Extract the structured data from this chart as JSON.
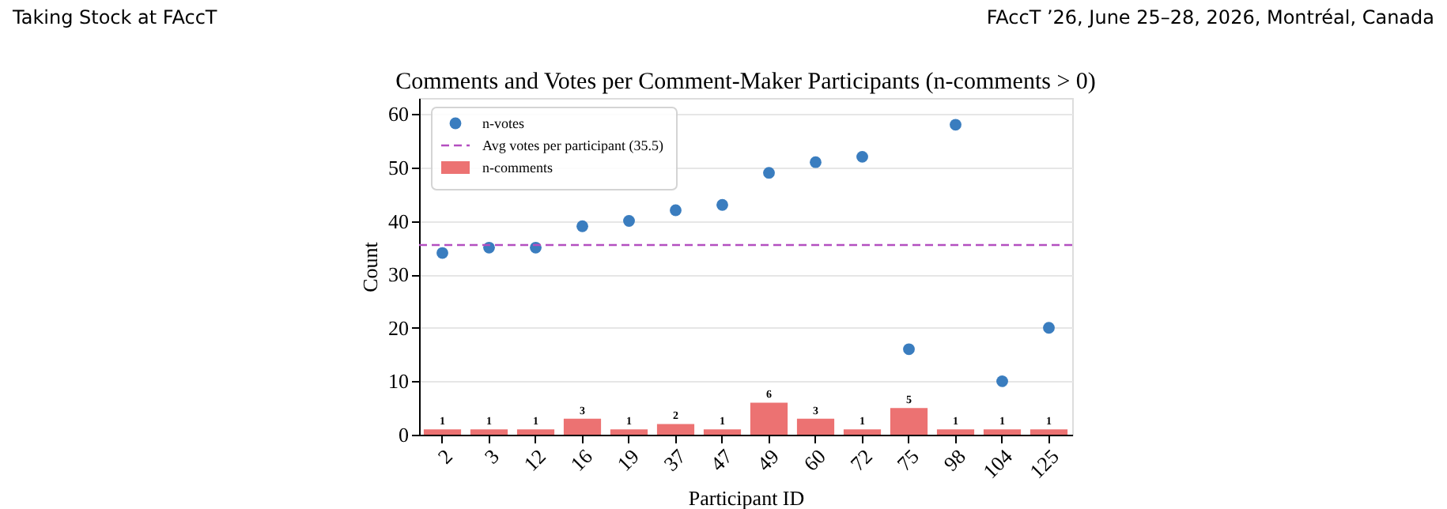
{
  "chart_data": {
    "type": "bar",
    "title": "Comments and Votes per Comment-Maker Participants (n-comments > 0)",
    "xlabel": "Participant ID",
    "ylabel": "Count",
    "categories": [
      "2",
      "3",
      "12",
      "16",
      "19",
      "37",
      "47",
      "49",
      "60",
      "72",
      "75",
      "98",
      "104",
      "125"
    ],
    "series": [
      {
        "name": "n-comments",
        "color": "#ec7272",
        "values": [
          1,
          1,
          1,
          3,
          1,
          2,
          1,
          6,
          3,
          1,
          5,
          1,
          1,
          1
        ],
        "value_labels": [
          "1",
          "1",
          "1",
          "3",
          "1",
          "2",
          "1",
          "6",
          "3",
          "1",
          "5",
          "1",
          "1",
          "1"
        ]
      },
      {
        "name": "n-votes",
        "type": "scatter",
        "color": "#3a7dbf",
        "values": [
          34,
          35,
          35,
          39,
          40,
          42,
          43,
          49,
          51,
          52,
          16,
          58,
          10,
          20
        ]
      }
    ],
    "ref_lines": [
      {
        "axis": "y",
        "value": 35.5,
        "label": "Avg votes per participant (35.5)",
        "color": "#b44fc0",
        "line_style": "dashed"
      }
    ],
    "ylim": [
      0,
      63
    ],
    "yticks": [
      0,
      10,
      20,
      30,
      40,
      50,
      60
    ],
    "grid": "y",
    "legend": "top left",
    "marker": "circle",
    "annotations": [
      "Taking Stock at FAccT",
      "FAccT ’26, June 25–28, 2026, Montréal, Canada"
    ]
  }
}
